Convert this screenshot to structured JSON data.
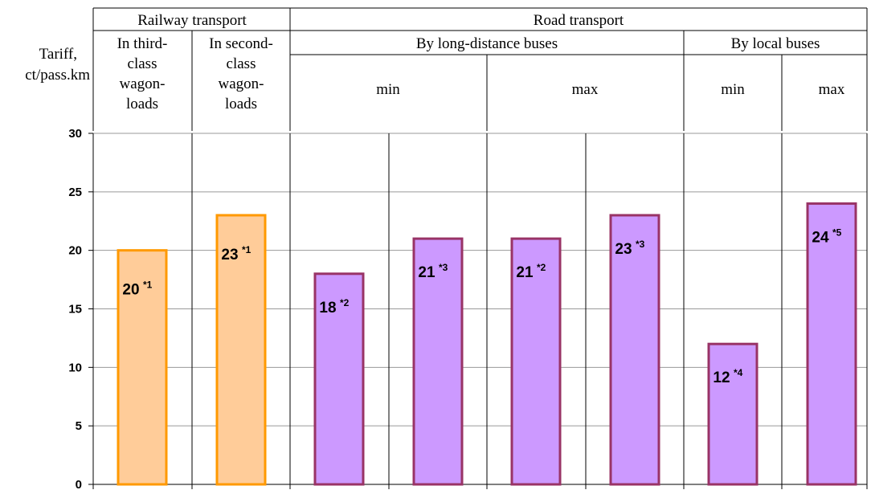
{
  "header": {
    "ylabel_line1": "Tariff,",
    "ylabel_line2": "ct/pass.km",
    "groups": [
      {
        "label": "Railway transport"
      },
      {
        "label": "Road transport"
      }
    ],
    "subgroups": [
      {
        "label_lines": [
          "In third-",
          "class",
          "wagon-",
          "loads"
        ]
      },
      {
        "label_lines": [
          "In second-",
          "class",
          "wagon-",
          "loads"
        ]
      },
      {
        "label": "By long-distance buses"
      },
      {
        "label": "By local buses"
      }
    ],
    "leaf_labels": [
      "min",
      "max",
      "min",
      "max"
    ]
  },
  "chart_data": {
    "type": "bar",
    "values": [
      20,
      23,
      18,
      21,
      21,
      23,
      12,
      24
    ],
    "labels": [
      "20",
      "23",
      "18",
      "21",
      "21",
      "23",
      "12",
      "24"
    ],
    "footnotes": [
      "*1",
      "*1",
      "*2",
      "*3",
      "*2",
      "*3",
      "*4",
      "*5"
    ],
    "ylim": [
      0,
      30
    ],
    "yticks": [
      0,
      5,
      10,
      15,
      20,
      25,
      30
    ],
    "grid": true,
    "series_colors": {
      "railway_fill": "#FFCC99",
      "railway_stroke": "#FF9900",
      "road_fill": "#CC99FF",
      "road_stroke": "#993366"
    },
    "bar_groups": [
      "railway",
      "railway",
      "road",
      "road",
      "road",
      "road",
      "road",
      "road"
    ]
  }
}
